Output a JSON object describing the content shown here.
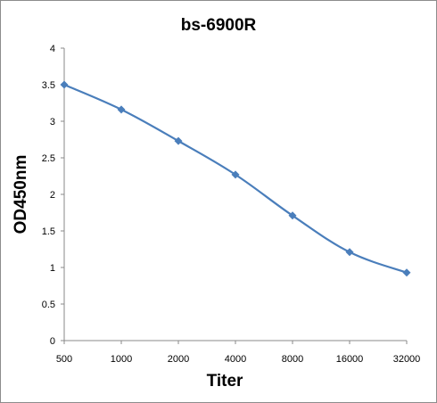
{
  "chart_data": {
    "type": "line",
    "title": "bs-6900R",
    "xlabel": "Titer",
    "ylabel": "OD450nm",
    "categories": [
      "500",
      "1000",
      "2000",
      "4000",
      "8000",
      "16000",
      "32000"
    ],
    "series": [
      {
        "values": [
          3.5,
          3.16,
          2.73,
          2.27,
          1.71,
          1.21,
          0.93
        ]
      }
    ],
    "ylim": [
      0,
      4
    ],
    "yticks": [
      "0",
      "0.5",
      "1",
      "1.5",
      "2",
      "2.5",
      "3",
      "3.5",
      "4"
    ],
    "grid": false,
    "legend": "none",
    "colors": {
      "series": "#4a7ebb",
      "axis": "#888888"
    }
  }
}
